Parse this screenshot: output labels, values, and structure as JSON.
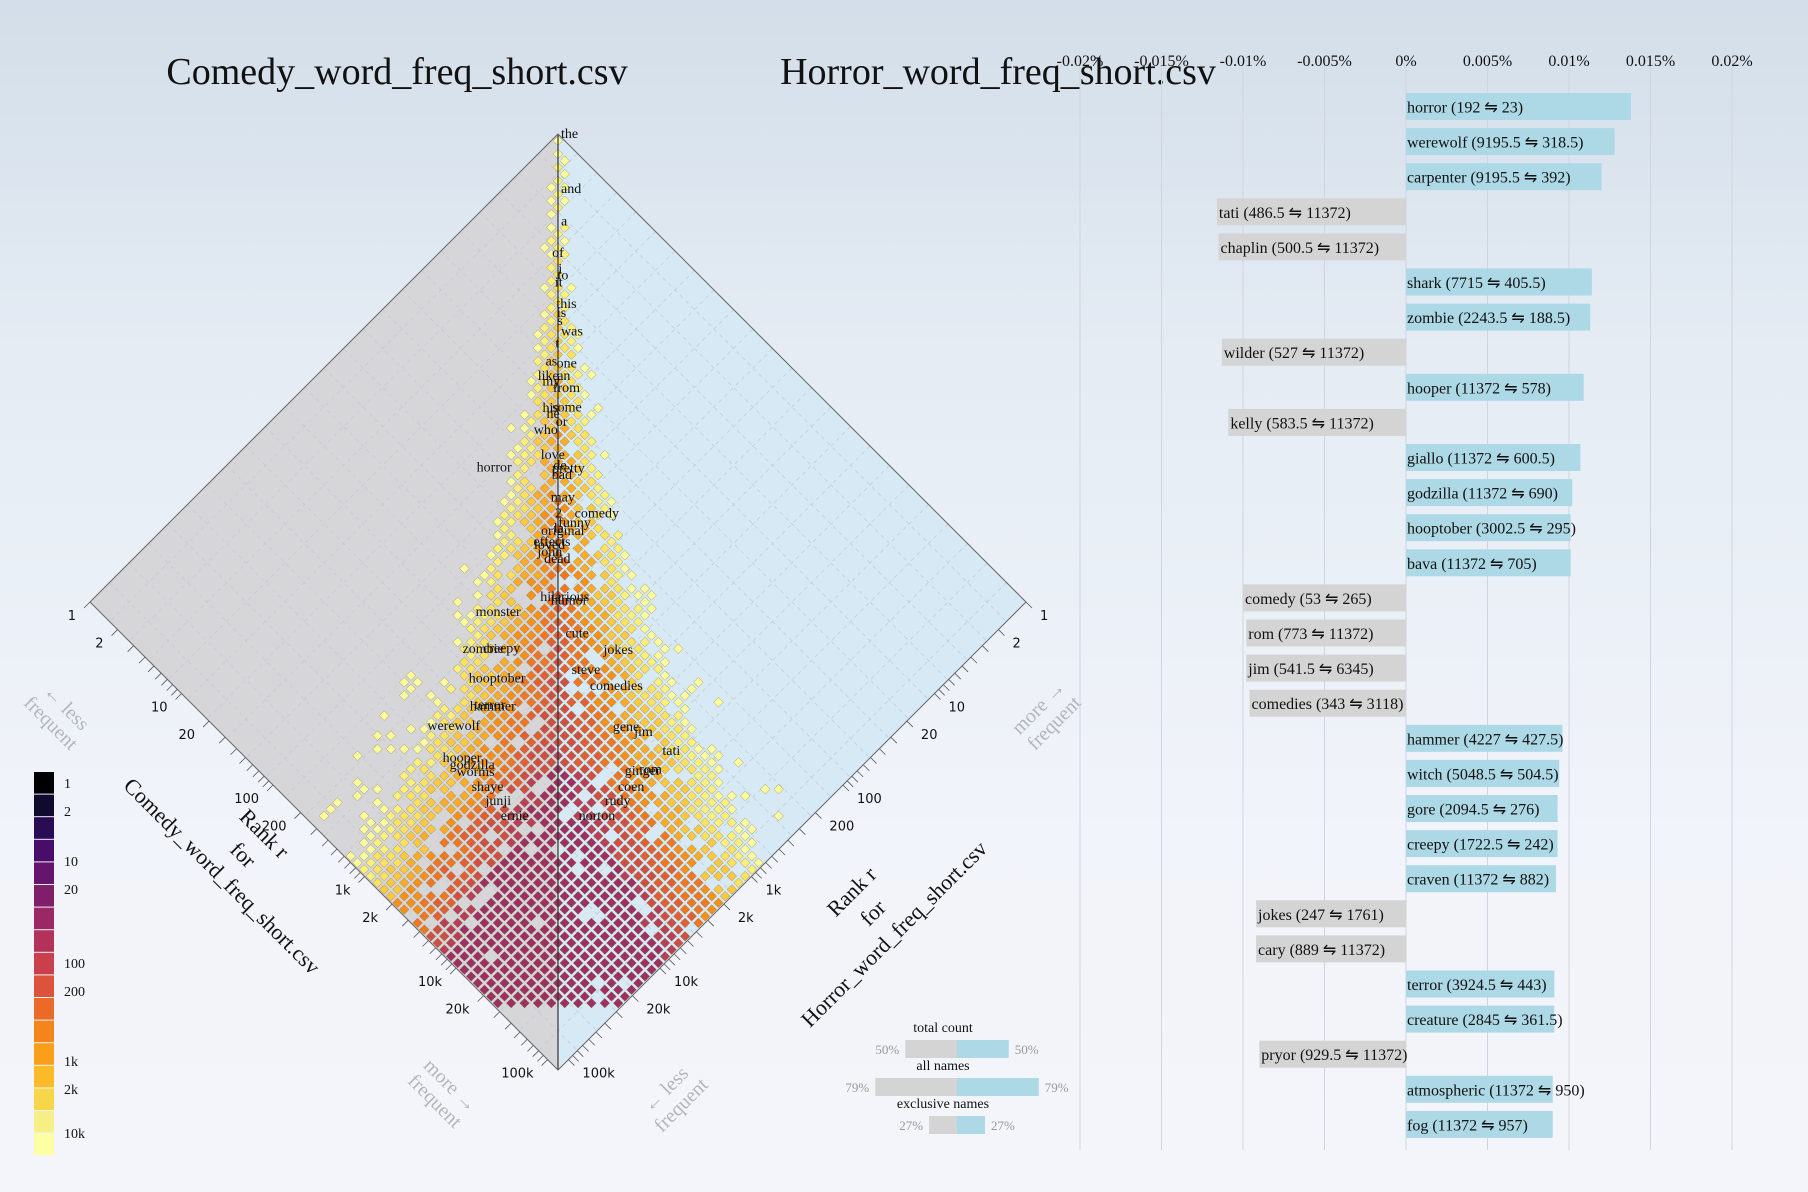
{
  "titles": {
    "left": "Comedy_word_freq_short.csv",
    "right": "Horror_word_freq_short.csv"
  },
  "axes": {
    "left_title": [
      "Rank r",
      "for",
      "Comedy_word_freq_short.csv"
    ],
    "right_title": [
      "Rank r",
      "for",
      "Horror_word_freq_short.csv"
    ],
    "rank_ticks": [
      "1",
      "2",
      "10",
      "20",
      "100",
      "200",
      "1k",
      "2k",
      "10k",
      "20k",
      "100k"
    ],
    "rank_values": [
      1,
      2,
      10,
      20,
      100,
      200,
      1000,
      2000,
      10000,
      20000,
      100000
    ],
    "less_frequent": [
      "← less",
      "frequent"
    ],
    "more_frequent_left": [
      "more →",
      "frequent"
    ],
    "more_frequent_right": [
      "more →",
      "frequent"
    ],
    "less_frequent_right": [
      "← less",
      "frequent"
    ]
  },
  "words": [
    {
      "w": "the",
      "cr": 1,
      "hr": 1
    },
    {
      "w": "a",
      "cr": 3,
      "hr": 3
    },
    {
      "w": "and",
      "cr": 2,
      "hr": 2
    },
    {
      "w": "i",
      "cr": 5,
      "hr": 6
    },
    {
      "w": "of",
      "cr": 5,
      "hr": 4
    },
    {
      "w": "to",
      "cr": 5,
      "hr": 7
    },
    {
      "w": "it",
      "cr": 7,
      "hr": 6
    },
    {
      "w": "this",
      "cr": 9,
      "hr": 8
    },
    {
      "w": "is",
      "cr": 10,
      "hr": 9
    },
    {
      "w": "s",
      "cr": 11,
      "hr": 10
    },
    {
      "w": "was",
      "cr": 12,
      "hr": 12
    },
    {
      "w": "as",
      "cr": 17,
      "hr": 18
    },
    {
      "w": "t",
      "cr": 15,
      "hr": 13
    },
    {
      "w": "like",
      "cr": 20,
      "hr": 22
    },
    {
      "w": "my",
      "cr": 21,
      "hr": 24
    },
    {
      "w": "one",
      "cr": 19,
      "hr": 17
    },
    {
      "w": "an",
      "cr": 22,
      "hr": 20
    },
    {
      "w": "from",
      "cr": 27,
      "hr": 22
    },
    {
      "w": "his",
      "cr": 30,
      "hr": 33
    },
    {
      "w": "he",
      "cr": 32,
      "hr": 36
    },
    {
      "w": "some",
      "cr": 35,
      "hr": 28
    },
    {
      "w": "who",
      "cr": 40,
      "hr": 43
    },
    {
      "w": "or",
      "cr": 40,
      "hr": 35
    },
    {
      "w": "love",
      "cr": 50,
      "hr": 64
    },
    {
      "w": "de",
      "cr": 56,
      "hr": 75
    },
    {
      "w": "comedy",
      "cr": 53,
      "hr": 265
    },
    {
      "w": "pretty",
      "cr": 75,
      "hr": 60
    },
    {
      "w": "bad",
      "cr": 82,
      "hr": 65
    },
    {
      "w": "funny",
      "cr": 85,
      "hr": 210
    },
    {
      "w": "may",
      "cr": 110,
      "hr": 85
    },
    {
      "w": "2",
      "cr": 128,
      "hr": 110
    },
    {
      "w": "horror",
      "cr": 192,
      "hr": 23
    },
    {
      "w": "la",
      "cr": 128,
      "hr": 160
    },
    {
      "w": "loved",
      "cr": 155,
      "hr": 200
    },
    {
      "w": "john",
      "cr": 175,
      "hr": 210
    },
    {
      "w": "original",
      "cr": 190,
      "hr": 115
    },
    {
      "w": "effects",
      "cr": 240,
      "hr": 120
    },
    {
      "w": "dead",
      "cr": 260,
      "hr": 170
    },
    {
      "w": "hilarious",
      "cr": 220,
      "hr": 520
    },
    {
      "w": "humor",
      "cr": 235,
      "hr": 530
    },
    {
      "w": "monster",
      "cr": 1200,
      "hr": 140
    },
    {
      "w": "jokes",
      "cr": 247,
      "hr": 1761
    },
    {
      "w": "cute",
      "cr": 350,
      "hr": 820
    },
    {
      "w": "creepy",
      "cr": 1722.5,
      "hr": 242
    },
    {
      "w": "zombie",
      "cr": 2243.5,
      "hr": 188.5
    },
    {
      "w": "steve",
      "cr": 480,
      "hr": 1500
    },
    {
      "w": "comedies",
      "cr": 343,
      "hr": 3118
    },
    {
      "w": "hooptober",
      "cr": 3002.5,
      "hr": 295
    },
    {
      "w": "terror",
      "cr": 3924.5,
      "hr": 443
    },
    {
      "w": "hammer",
      "cr": 4227,
      "hr": 427.5
    },
    {
      "w": "gene",
      "cr": 600,
      "hr": 5000
    },
    {
      "w": "werewolf",
      "cr": 9195.5,
      "hr": 318.5
    },
    {
      "w": "jim",
      "cr": 541.5,
      "hr": 6345
    },
    {
      "w": "tati",
      "cr": 486.5,
      "hr": 11372
    },
    {
      "w": "hooper",
      "cr": 11372,
      "hr": 578
    },
    {
      "w": "godzilla",
      "cr": 11372,
      "hr": 690
    },
    {
      "w": "rom",
      "cr": 773,
      "hr": 11372
    },
    {
      "w": "ginger",
      "cr": 800,
      "hr": 11372
    },
    {
      "w": "worms",
      "cr": 11372,
      "hr": 820
    },
    {
      "w": "coen",
      "cr": 1200,
      "hr": 11372
    },
    {
      "w": "shaye",
      "cr": 11372,
      "hr": 1200
    },
    {
      "w": "rudy",
      "cr": 1700,
      "hr": 11372
    },
    {
      "w": "junji",
      "cr": 11372,
      "hr": 1700
    },
    {
      "w": "norton",
      "cr": 2500,
      "hr": 11372
    },
    {
      "w": "ernie",
      "cr": 11372,
      "hr": 2500
    }
  ],
  "colorbar": {
    "labels": [
      "1",
      "2",
      "10",
      "20",
      "100",
      "200",
      "1k",
      "2k",
      "10k"
    ],
    "label_positions": [
      0,
      1,
      3,
      4,
      7,
      8,
      10,
      11,
      13
    ]
  },
  "balance": {
    "rows": [
      {
        "label": "total count",
        "left_pct": "50%",
        "right_pct": "50%",
        "left": 0.5,
        "right": 0.5
      },
      {
        "label": "all names",
        "left_pct": "79%",
        "right_pct": "79%",
        "left": 0.79,
        "right": 0.79
      },
      {
        "label": "exclusive names",
        "left_pct": "27%",
        "right_pct": "27%",
        "left": 0.27,
        "right": 0.27
      }
    ]
  },
  "chart_data": {
    "type": "bar",
    "orientation": "horizontal",
    "xlim": [
      -0.02,
      0.02
    ],
    "x_ticks": [
      -0.02,
      -0.015,
      -0.01,
      -0.005,
      0,
      0.005,
      0.01,
      0.015,
      0.02
    ],
    "x_tick_labels": [
      "-0.02%",
      "-0.015%",
      "-0.01%",
      "-0.005%",
      "0%",
      "0.005%",
      "0.01%",
      "0.015%",
      "0.02%"
    ],
    "colors": {
      "comedy": "#d4d4d4",
      "horror": "#add8e6"
    },
    "bars": [
      {
        "label": "horror (192 ⇋ 23)",
        "value": 0.0138
      },
      {
        "label": "werewolf (9195.5 ⇋ 318.5)",
        "value": 0.0128
      },
      {
        "label": "carpenter (9195.5 ⇋ 392)",
        "value": 0.012
      },
      {
        "label": "tati (486.5 ⇋ 11372)",
        "value": -0.0116
      },
      {
        "label": "chaplin (500.5 ⇋ 11372)",
        "value": -0.0115
      },
      {
        "label": "shark (7715 ⇋ 405.5)",
        "value": 0.0114
      },
      {
        "label": "zombie (2243.5 ⇋ 188.5)",
        "value": 0.0113
      },
      {
        "label": "wilder (527 ⇋ 11372)",
        "value": -0.0113
      },
      {
        "label": "hooper (11372 ⇋ 578)",
        "value": 0.0109
      },
      {
        "label": "kelly (583.5 ⇋ 11372)",
        "value": -0.0109
      },
      {
        "label": "giallo (11372 ⇋ 600.5)",
        "value": 0.0107
      },
      {
        "label": "godzilla (11372 ⇋ 690)",
        "value": 0.0102
      },
      {
        "label": "hooptober (3002.5 ⇋ 295)",
        "value": 0.0101
      },
      {
        "label": "bava (11372 ⇋ 705)",
        "value": 0.0101
      },
      {
        "label": "comedy (53 ⇋ 265)",
        "value": -0.01
      },
      {
        "label": "rom (773 ⇋ 11372)",
        "value": -0.0098
      },
      {
        "label": "jim (541.5 ⇋ 6345)",
        "value": -0.0098
      },
      {
        "label": "comedies (343 ⇋ 3118)",
        "value": -0.0096
      },
      {
        "label": "hammer (4227 ⇋ 427.5)",
        "value": 0.0096
      },
      {
        "label": "witch (5048.5 ⇋ 504.5)",
        "value": 0.0094
      },
      {
        "label": "gore (2094.5 ⇋ 276)",
        "value": 0.0093
      },
      {
        "label": "creepy (1722.5 ⇋ 242)",
        "value": 0.0093
      },
      {
        "label": "craven (11372 ⇋ 882)",
        "value": 0.0092
      },
      {
        "label": "jokes (247 ⇋ 1761)",
        "value": -0.0092
      },
      {
        "label": "cary (889 ⇋ 11372)",
        "value": -0.0092
      },
      {
        "label": "terror (3924.5 ⇋ 443)",
        "value": 0.0091
      },
      {
        "label": "creature (2845 ⇋ 361.5)",
        "value": 0.0091
      },
      {
        "label": "pryor (929.5 ⇋ 11372)",
        "value": -0.009
      },
      {
        "label": "atmospheric (11372 ⇋ 950)",
        "value": 0.009
      },
      {
        "label": "fog (11372 ⇋ 957)",
        "value": 0.009
      }
    ]
  }
}
